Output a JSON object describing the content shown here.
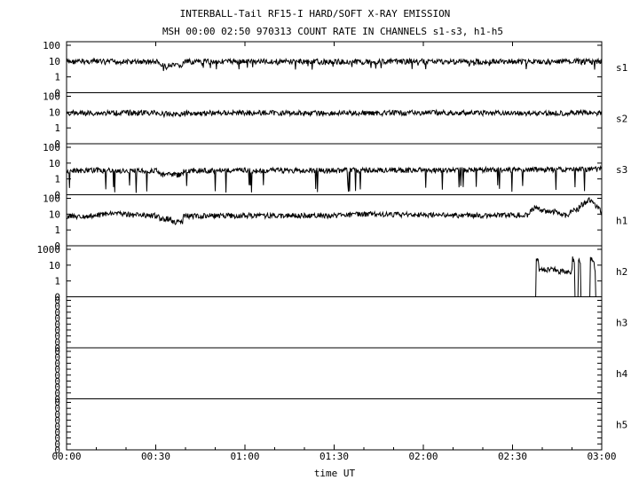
{
  "header": {
    "title_line1": "INTERBALL-Tail RF15-I HARD/SOFT X-RAY EMISSION",
    "title_line2": "MSH 00:00 02:50 970313  COUNT RATE IN CHANNELS s1-s3, h1-h5"
  },
  "chart_data": {
    "type": "line",
    "title": "INTERBALL-Tail RF15-I HARD/SOFT X-RAY EMISSION",
    "subtitle": "MSH 00:00 02:50 970313  COUNT RATE IN CHANNELS s1-s3, h1-h5",
    "xlabel": "time UT",
    "x_unit": "minutes",
    "xlim": [
      0,
      180
    ],
    "x_ticks": [
      {
        "v": 0,
        "label": "00:00"
      },
      {
        "v": 30,
        "label": "00:30"
      },
      {
        "v": 60,
        "label": "01:00"
      },
      {
        "v": 90,
        "label": "01:30"
      },
      {
        "v": 120,
        "label": "02:00"
      },
      {
        "v": 150,
        "label": "02:30"
      },
      {
        "v": 180,
        "label": "03:00"
      }
    ],
    "panels": [
      {
        "name": "s1",
        "y_scale": "log",
        "y_ticks": [
          "100",
          "10",
          "1",
          "0"
        ],
        "series_points": [
          [
            0,
            9
          ],
          [
            10,
            9.5
          ],
          [
            20,
            9
          ],
          [
            31,
            9
          ],
          [
            31.5,
            5
          ],
          [
            39,
            5
          ],
          [
            39.5,
            9
          ],
          [
            60,
            9.5
          ],
          [
            90,
            9
          ],
          [
            100,
            9
          ],
          [
            120,
            9.5
          ],
          [
            140,
            9
          ],
          [
            150,
            9.5
          ],
          [
            160,
            9
          ],
          [
            170,
            9.5
          ],
          [
            180,
            9
          ]
        ]
      },
      {
        "name": "s2",
        "y_scale": "log",
        "y_ticks": [
          "100",
          "10",
          "1",
          "0"
        ],
        "series_points": [
          [
            0,
            8.5
          ],
          [
            20,
            9
          ],
          [
            31,
            9
          ],
          [
            31.5,
            7.5
          ],
          [
            39,
            7.5
          ],
          [
            39.5,
            8.5
          ],
          [
            60,
            9
          ],
          [
            90,
            8.5
          ],
          [
            120,
            9
          ],
          [
            150,
            8.5
          ],
          [
            180,
            9
          ]
        ]
      },
      {
        "name": "s3",
        "y_scale": "log",
        "y_ticks": [
          "100",
          "10",
          "1",
          "0"
        ],
        "series_points": [
          [
            0,
            3.2
          ],
          [
            10,
            3.5
          ],
          [
            20,
            3.2
          ],
          [
            31,
            3.3
          ],
          [
            31.5,
            1.8
          ],
          [
            39,
            1.8
          ],
          [
            39.5,
            3.3
          ],
          [
            60,
            3.5
          ],
          [
            90,
            3.4
          ],
          [
            120,
            3.6
          ],
          [
            150,
            3.8
          ],
          [
            170,
            4
          ],
          [
            180,
            4.2
          ]
        ]
      },
      {
        "name": "h1",
        "y_scale": "log",
        "y_ticks": [
          "100",
          "10",
          "1",
          "0"
        ],
        "series_points": [
          [
            0,
            7
          ],
          [
            10,
            8
          ],
          [
            16,
            12
          ],
          [
            20,
            9
          ],
          [
            31,
            8
          ],
          [
            31.5,
            5
          ],
          [
            35,
            5
          ],
          [
            35.2,
            3
          ],
          [
            39,
            3
          ],
          [
            39.5,
            7.5
          ],
          [
            60,
            8
          ],
          [
            90,
            8
          ],
          [
            100,
            10
          ],
          [
            120,
            9
          ],
          [
            140,
            8
          ],
          [
            155,
            9
          ],
          [
            158,
            30
          ],
          [
            160,
            15
          ],
          [
            165,
            14
          ],
          [
            168,
            8
          ],
          [
            172,
            20
          ],
          [
            176,
            80
          ],
          [
            178,
            30
          ],
          [
            180,
            12
          ]
        ]
      },
      {
        "name": "h2",
        "y_scale": "log",
        "y_ticks": [
          "1000",
          "10",
          "1",
          "0"
        ],
        "series_points": [
          [
            0,
            0
          ],
          [
            157.9,
            0
          ],
          [
            158,
            150
          ],
          [
            159,
            12
          ],
          [
            164,
            12
          ],
          [
            165,
            8
          ],
          [
            170,
            8
          ],
          [
            170.2,
            120
          ],
          [
            171,
            0
          ],
          [
            172,
            0
          ],
          [
            172.2,
            130
          ],
          [
            173,
            0
          ],
          [
            176,
            0
          ],
          [
            176.2,
            150
          ],
          [
            177.5,
            30
          ],
          [
            178,
            0
          ],
          [
            180,
            0
          ]
        ]
      },
      {
        "name": "h3",
        "y_scale": "log",
        "y_ticks": [
          "0",
          "0",
          "0",
          "0",
          "0",
          "0",
          "0",
          "0",
          "0"
        ],
        "series_points": [
          [
            0,
            0
          ],
          [
            180,
            0
          ]
        ]
      },
      {
        "name": "h4",
        "y_scale": "log",
        "y_ticks": [
          "0",
          "0",
          "0",
          "0",
          "0",
          "0",
          "0",
          "0",
          "0"
        ],
        "series_points": [
          [
            0,
            0
          ],
          [
            180,
            0
          ]
        ]
      },
      {
        "name": "h5",
        "y_scale": "log",
        "y_ticks": [
          "0",
          "0",
          "0",
          "0",
          "0",
          "0",
          "0",
          "0",
          "0"
        ],
        "series_points": [
          [
            0,
            0
          ],
          [
            180,
            0
          ]
        ]
      }
    ]
  },
  "colors": {
    "axis": "#000000",
    "line": "#000000",
    "background": "#ffffff"
  }
}
